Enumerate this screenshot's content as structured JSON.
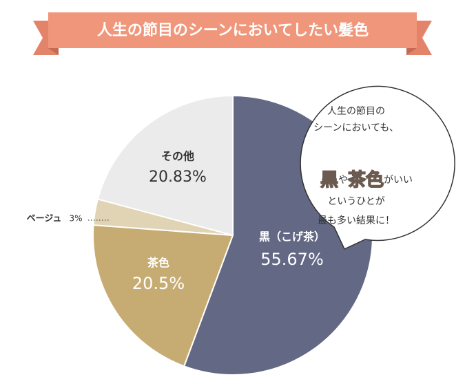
{
  "chart_data": {
    "type": "pie",
    "title": "人生の節目のシーンにおいてしたい髪色",
    "categories": [
      "黒（こげ茶）",
      "茶色",
      "ベージュ",
      "その他"
    ],
    "values": [
      55.67,
      20.5,
      3,
      20.83
    ],
    "value_labels": [
      "55.67%",
      "20.5%",
      "3%",
      "20.83%"
    ],
    "colors": [
      "#636884",
      "#c6ac73",
      "#e1d4b4",
      "#ebebeb"
    ],
    "annotation": {
      "lines": [
        "人生の節目の",
        "シーンにおいても、",
        [
          "黒",
          "や",
          "茶色",
          "がいい"
        ],
        "というひとが",
        "最も多い結果に！"
      ]
    }
  }
}
